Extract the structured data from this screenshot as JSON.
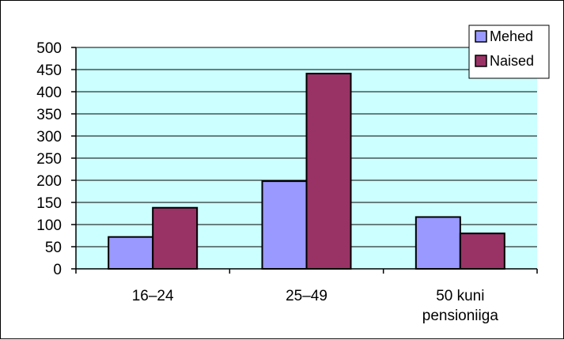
{
  "chart_data": {
    "type": "bar",
    "title": "",
    "xlabel": "",
    "ylabel": "",
    "categories": [
      [
        "16–24"
      ],
      [
        "25–49"
      ],
      [
        "50 kuni",
        "pensioniiga"
      ]
    ],
    "series": [
      {
        "name": "Mehed",
        "values": [
          72,
          198,
          117
        ],
        "color": "#9999FF"
      },
      {
        "name": "Naised",
        "values": [
          138,
          441,
          80
        ],
        "color": "#993366"
      }
    ],
    "ylim": [
      0,
      500
    ],
    "yticks": [
      0,
      50,
      100,
      150,
      200,
      250,
      300,
      350,
      400,
      450,
      500
    ],
    "grid": true,
    "legend_position": "top-right",
    "plot_background": "#CCFFFF"
  }
}
